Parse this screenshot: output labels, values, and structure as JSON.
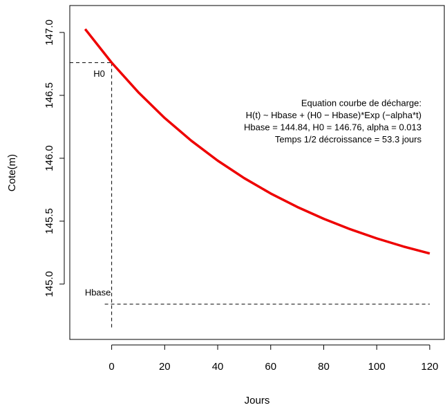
{
  "chart_data": {
    "type": "line",
    "xlabel": "Jours",
    "ylabel": "Cote(m)",
    "x": [
      -10,
      0,
      10,
      20,
      30,
      40,
      50,
      60,
      70,
      80,
      90,
      100,
      110,
      120
    ],
    "series": [
      {
        "color": "#ee0000",
        "values": [
          147.027,
          146.76,
          146.526,
          146.32,
          146.14,
          145.981,
          145.842,
          145.72,
          145.613,
          145.519,
          145.436,
          145.363,
          145.299,
          145.243
        ]
      }
    ],
    "xlim": [
      -15.8,
      125.5
    ],
    "ylim": [
      144.56,
      147.214
    ],
    "xticks": [
      0,
      20,
      40,
      60,
      80,
      100,
      120
    ],
    "yticks": [
      {
        "value": 145,
        "label": "145.0"
      },
      {
        "value": 145.5,
        "label": "145.5"
      },
      {
        "value": 146,
        "label": "146.0"
      },
      {
        "value": 146.5,
        "label": "146.5"
      },
      {
        "value": 147,
        "label": "147.0"
      }
    ],
    "annotations": [
      {
        "text": "H0",
        "x": 0,
        "y": 146.76
      },
      {
        "text": "Hbase",
        "x": 0,
        "y": 144.84
      }
    ],
    "equation": [
      "Equation courbe de décharge:",
      "H(t) ~ Hbase + (H0 − Hbase)*Exp (−alpha*t)",
      "Hbase = 144.84, H0 = 146.76, alpha = 0.013",
      "Temps 1/2 décroissance = 53.3 jours"
    ]
  }
}
